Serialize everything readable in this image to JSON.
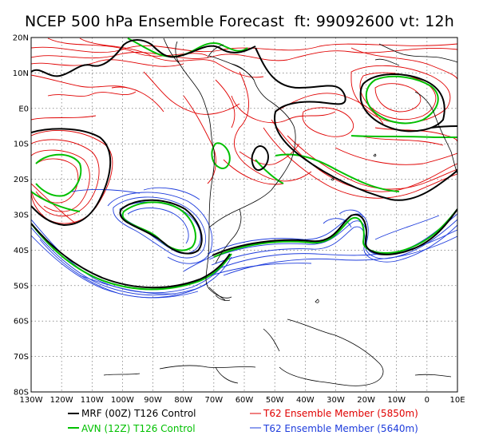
{
  "title": "NCEP 500 hPa Ensemble Forecast  ft: 99092600 vt: 12h",
  "lat_labels": [
    "20N",
    "10N",
    "E0",
    "10S",
    "20S",
    "30S",
    "40S",
    "50S",
    "60S",
    "70S",
    "80S"
  ],
  "lon_labels": [
    "130W",
    "120W",
    "110W",
    "100W",
    "90W",
    "80W",
    "70W",
    "60W",
    "50W",
    "40W",
    "30W",
    "20W",
    "10W",
    "0",
    "10E"
  ],
  "legend": [
    {
      "label": "MRF (00Z) T126 Control",
      "color": "#000000"
    },
    {
      "label": "AVN (12Z) T126 Control",
      "color": "#00c000"
    },
    {
      "label": "T62 Ensemble Member (5850m)",
      "color": "#e00000"
    },
    {
      "label": "T62 Ensemble Member (5640m)",
      "color": "#1e3cdc"
    }
  ],
  "colors": {
    "mrf": "#000000",
    "avn": "#00c000",
    "ens5850": "#e00000",
    "ens5640": "#1e3cdc",
    "coast": "#000000",
    "grid": "#555555"
  }
}
